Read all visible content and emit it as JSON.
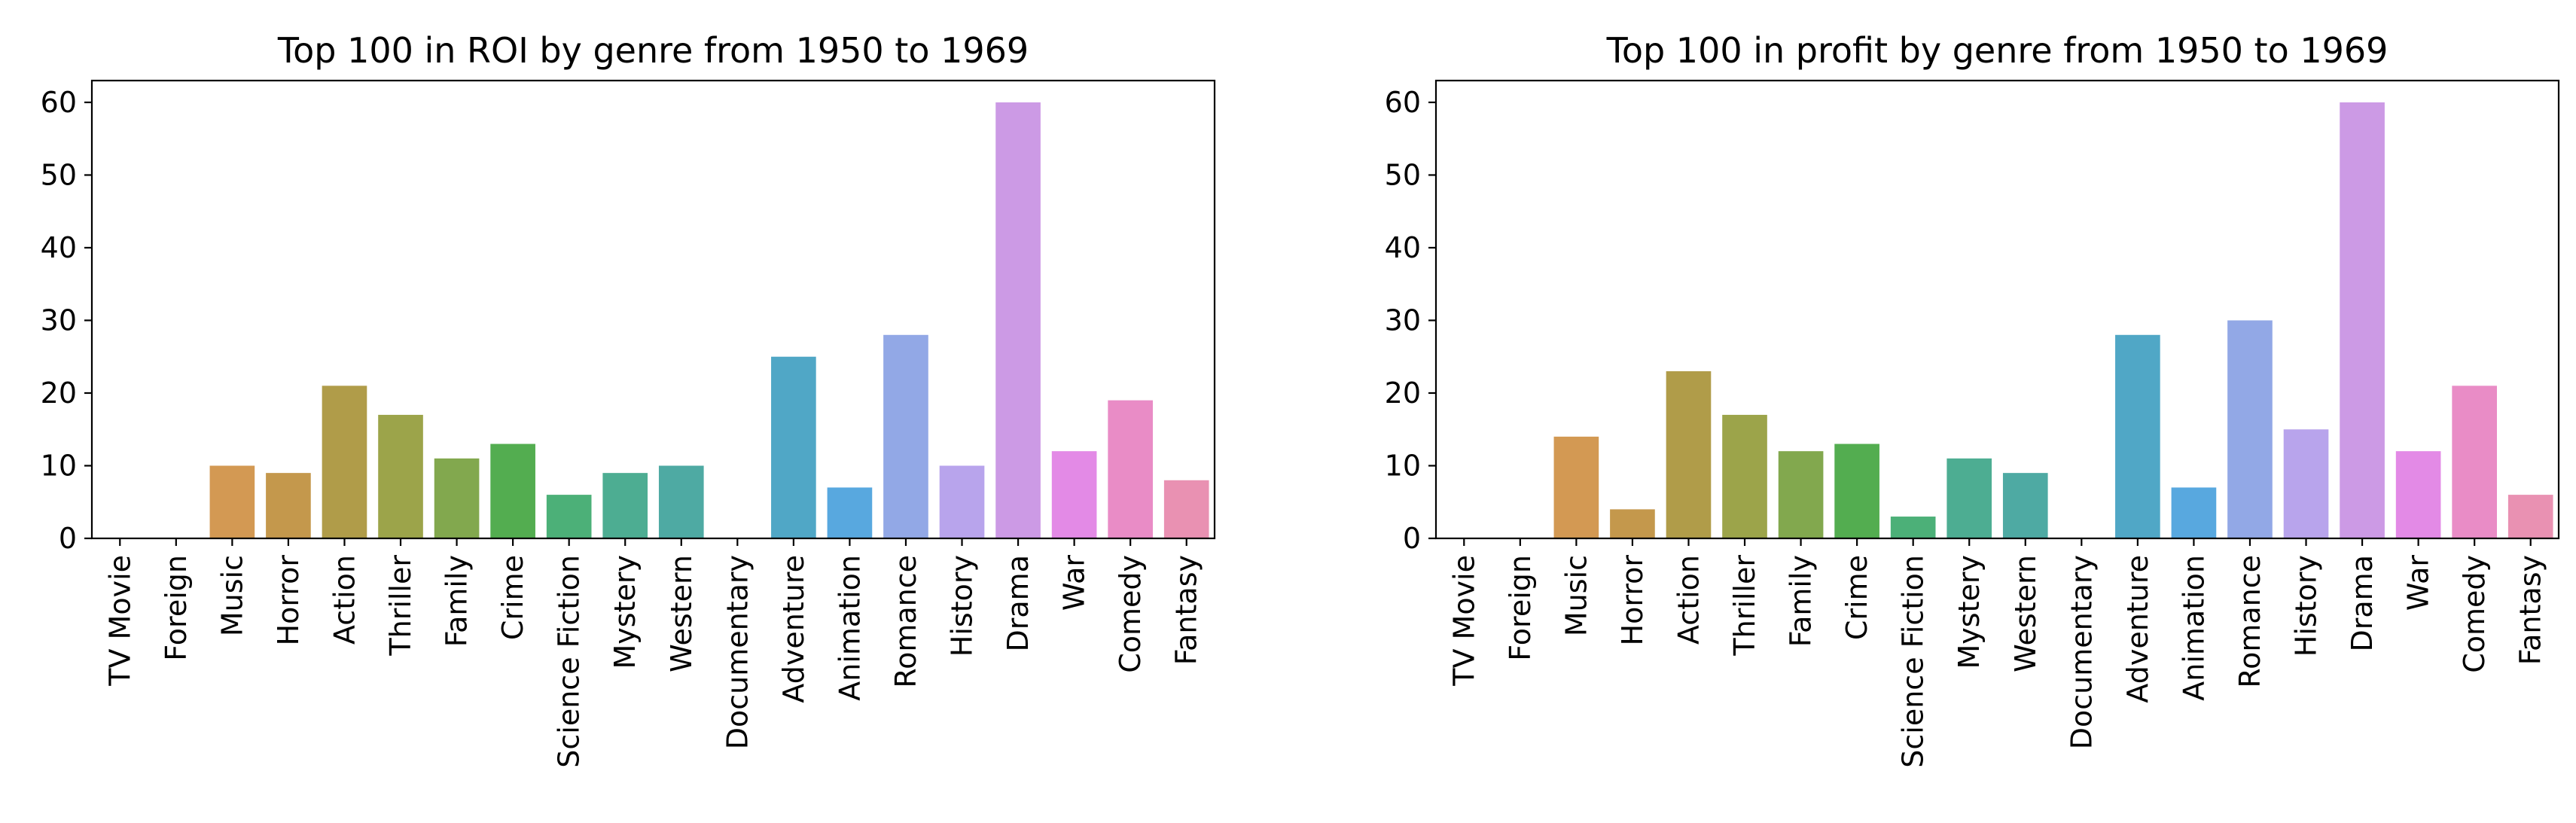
{
  "chart_data": [
    {
      "type": "bar",
      "title": "Top 100 in ROI by genre from 1950 to 1969",
      "xlabel": "",
      "ylabel": "",
      "ylim": [
        0,
        63
      ],
      "yticks": [
        0,
        10,
        20,
        30,
        40,
        50,
        60
      ],
      "grid": false,
      "legend": "none",
      "categories": [
        "TV Movie",
        "Foreign",
        "Music",
        "Horror",
        "Action",
        "Thriller",
        "Family",
        "Crime",
        "Science Fiction",
        "Mystery",
        "Western",
        "Documentary",
        "Adventure",
        "Animation",
        "Romance",
        "History",
        "Drama",
        "War",
        "Comedy",
        "Fantasy"
      ],
      "values": [
        0,
        0,
        10,
        9,
        21,
        17,
        11,
        13,
        6,
        9,
        10,
        0,
        25,
        7,
        28,
        10,
        60,
        12,
        19,
        8
      ]
    },
    {
      "type": "bar",
      "title": "Top 100 in profit by genre from 1950 to 1969",
      "xlabel": "",
      "ylabel": "",
      "ylim": [
        0,
        63
      ],
      "yticks": [
        0,
        10,
        20,
        30,
        40,
        50,
        60
      ],
      "grid": false,
      "legend": "none",
      "categories": [
        "TV Movie",
        "Foreign",
        "Music",
        "Horror",
        "Action",
        "Thriller",
        "Family",
        "Crime",
        "Science Fiction",
        "Mystery",
        "Western",
        "Documentary",
        "Adventure",
        "Animation",
        "Romance",
        "History",
        "Drama",
        "War",
        "Comedy",
        "Fantasy"
      ],
      "values": [
        0,
        0,
        14,
        4,
        23,
        17,
        12,
        13,
        3,
        11,
        9,
        0,
        28,
        7,
        30,
        15,
        60,
        12,
        21,
        6
      ]
    }
  ],
  "colors": [
    "#e8817e",
    "#e08c6b",
    "#d39953",
    "#c4984c",
    "#b09c49",
    "#9ca44a",
    "#82a84e",
    "#53ad50",
    "#4cb078",
    "#4dad92",
    "#4eaaa3",
    "#4faab5",
    "#50a7c6",
    "#58a8df",
    "#92a8e6",
    "#b8a4ec",
    "#cc9ae5",
    "#e38ae6",
    "#e98cc6",
    "#e991b2"
  ]
}
